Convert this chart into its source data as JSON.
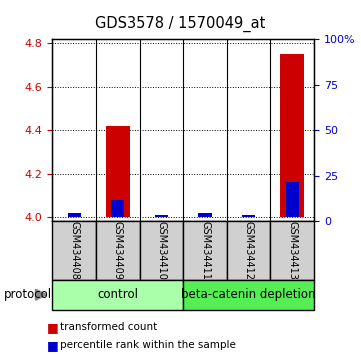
{
  "title": "GDS3578 / 1570049_at",
  "samples": [
    "GSM434408",
    "GSM434409",
    "GSM434410",
    "GSM434411",
    "GSM434412",
    "GSM434413"
  ],
  "red_values": [
    4.0,
    4.42,
    4.0,
    4.0,
    4.0,
    4.75
  ],
  "blue_values": [
    4.02,
    4.08,
    4.01,
    4.02,
    4.01,
    4.16
  ],
  "ylim_left": [
    3.98,
    4.82
  ],
  "yticks_left": [
    4.0,
    4.2,
    4.4,
    4.6,
    4.8
  ],
  "yticks_right": [
    0,
    25,
    50,
    75,
    100
  ],
  "left_color": "#cc0000",
  "right_color": "#0000cc",
  "control_color": "#aaffaa",
  "beta_color": "#55ee55",
  "gray_color": "#d0d0d0",
  "protocol_label": "protocol",
  "legend_red": "transformed count",
  "legend_blue": "percentile rank within the sample"
}
